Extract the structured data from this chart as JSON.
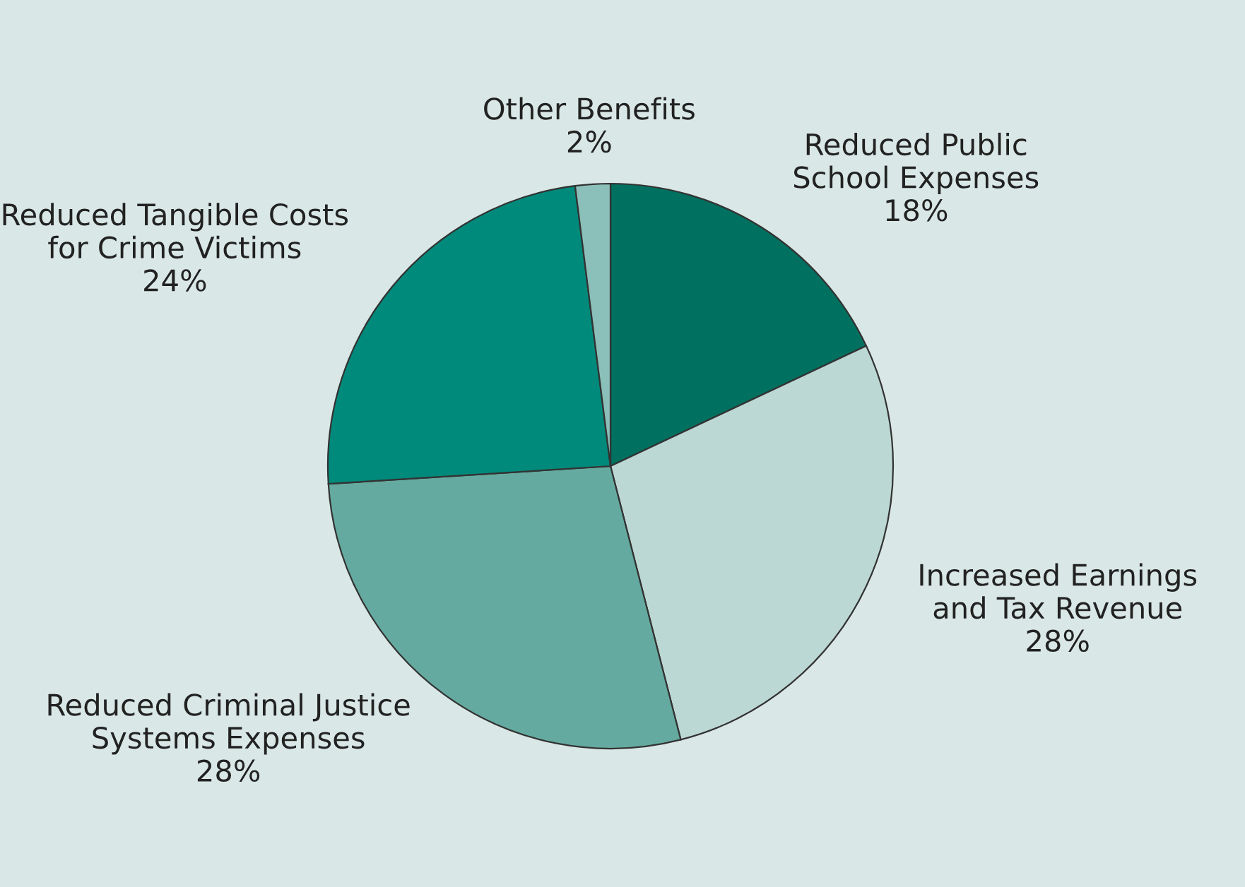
{
  "chart_data": {
    "type": "pie",
    "categories": [
      "Reduced Public\nSchool Expenses",
      "Increased Earnings\nand Tax Revenue",
      "Reduced Criminal Justice\nSystems Expenses",
      "Reduced Tangible Costs\nfor Crime Victims",
      "Other Benefits"
    ],
    "values": [
      18,
      28,
      28,
      24,
      2
    ],
    "colors": [
      "#007060",
      "#bcd8d4",
      "#64aaa0",
      "#008a7c",
      "#8bbfb9"
    ],
    "value_labels": [
      "18%",
      "28%",
      "28%",
      "24%",
      "2%"
    ]
  }
}
